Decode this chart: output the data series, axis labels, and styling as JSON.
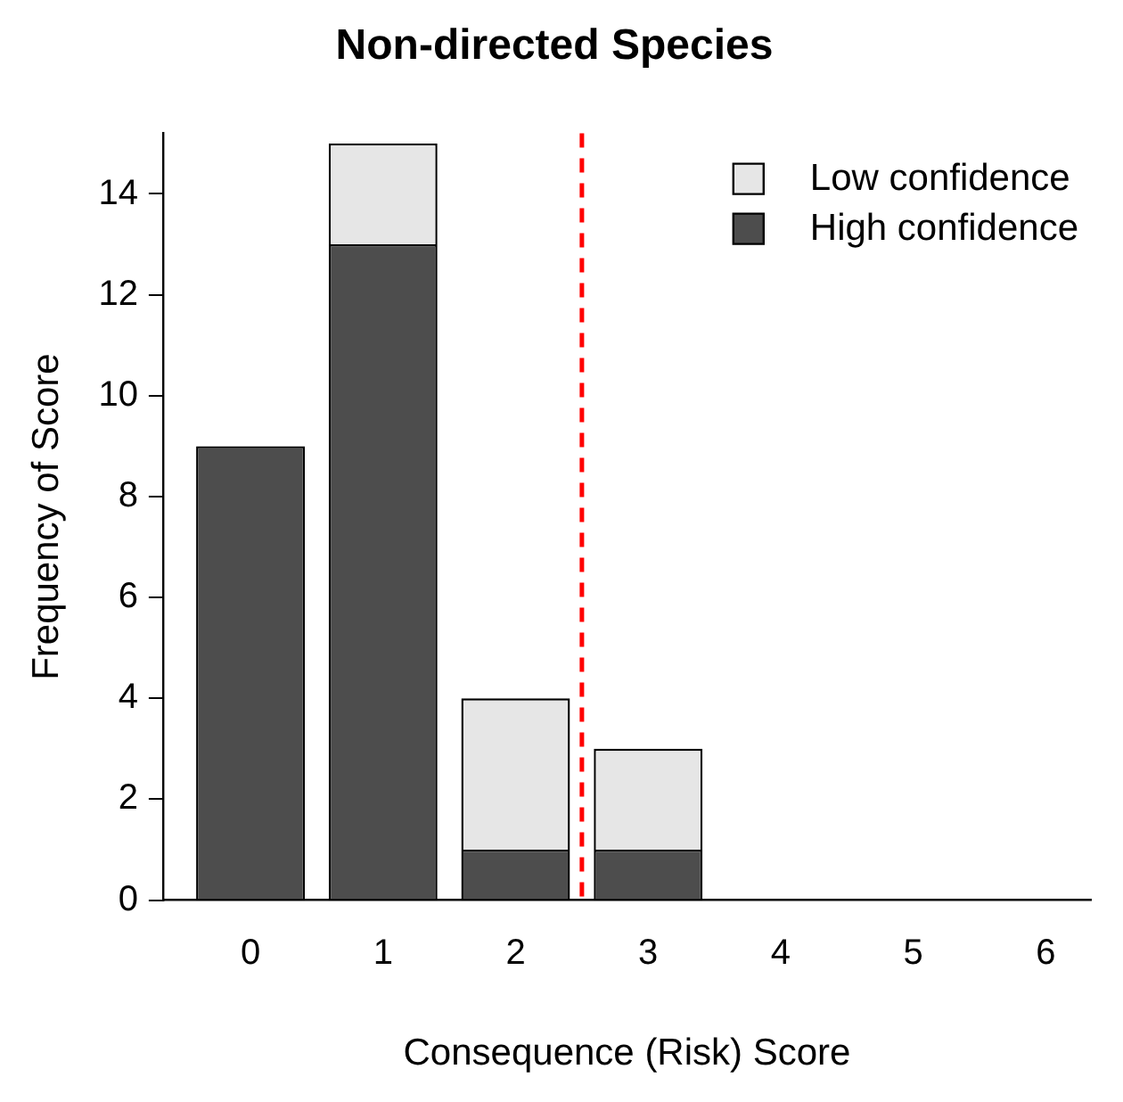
{
  "chart_data": {
    "type": "bar",
    "title": "Non-directed Species",
    "xlabel": "Consequence (Risk) Score",
    "ylabel": "Frequency of Score",
    "x": [
      0,
      1,
      2,
      3,
      4,
      5,
      6
    ],
    "xlim": [
      -0.66,
      6.34
    ],
    "xticks": [
      0,
      1,
      2,
      3,
      4,
      5,
      6
    ],
    "ylim": [
      0,
      15.2
    ],
    "yticks": [
      0,
      2,
      4,
      6,
      8,
      10,
      12,
      14
    ],
    "stacked": true,
    "grid": false,
    "legend": "top right",
    "series": [
      {
        "name": "High confidence",
        "color": "#4d4d4d",
        "values": [
          9,
          13,
          1,
          1,
          0,
          0,
          0
        ]
      },
      {
        "name": "Low confidence",
        "color": "#e6e6e6",
        "values": [
          0,
          2,
          3,
          2,
          0,
          0,
          0
        ]
      }
    ],
    "ref_lines": [
      {
        "axis": "x",
        "value": 2.5,
        "color": "#ff0000",
        "line_style": "dashed"
      }
    ]
  }
}
